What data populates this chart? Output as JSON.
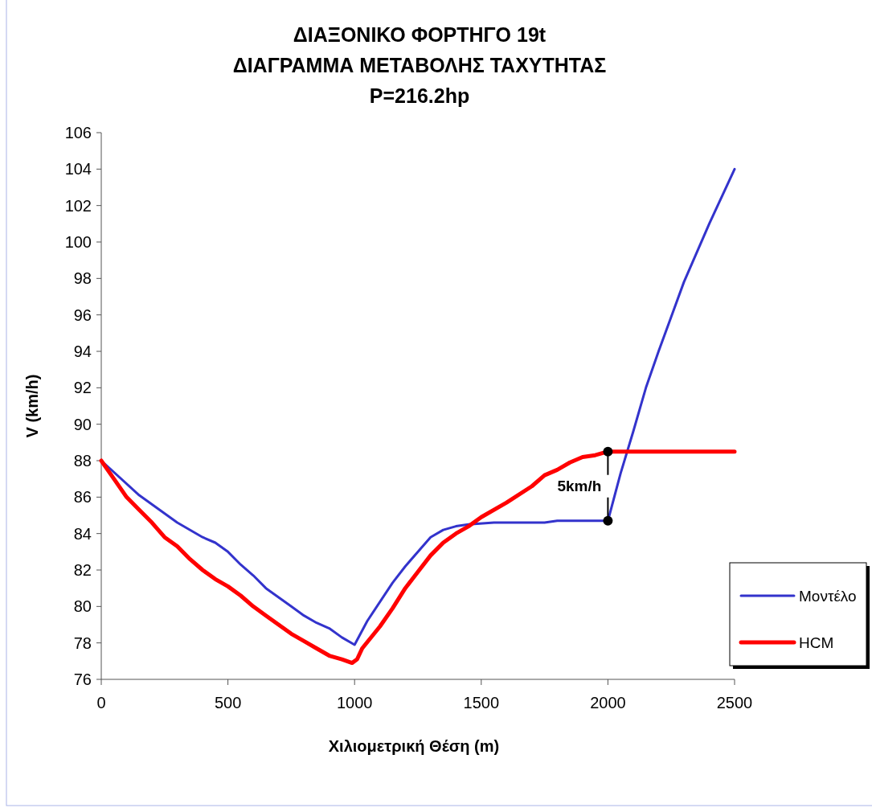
{
  "chart_data": {
    "type": "line",
    "title": "ΔΙΑΞΟΝΙΚΟ ΦΟΡΤΗΓΟ 19t\nΔΙΑΓΡΑΜΜΑ ΜΕΤΑΒΟΛΗΣ ΤΑΧΥΤΗΤΑΣ\nP=216.2hp",
    "xlabel": "Χιλιομετρική Θέση (m)",
    "ylabel": "V (km/h)",
    "xlim": [
      0,
      2500
    ],
    "xticks": [
      0,
      500,
      1000,
      1500,
      2000,
      2500
    ],
    "ylim": [
      76,
      106
    ],
    "yticks": [
      76,
      78,
      80,
      82,
      84,
      86,
      88,
      90,
      92,
      94,
      96,
      98,
      100,
      102,
      104,
      106
    ],
    "grid": false,
    "legend": "right",
    "marker": "none",
    "line_style": "solid",
    "series": [
      {
        "name": "Μοντέλο",
        "color": "#3333cc",
        "x": [
          0,
          150,
          300,
          400,
          450,
          500,
          550,
          600,
          650,
          750,
          800,
          850,
          900,
          950,
          1000,
          1050,
          1150,
          1200,
          1300,
          1350,
          1400,
          1450,
          1550,
          1750,
          1800,
          2000,
          2050,
          2100,
          2150,
          2200,
          2250,
          2300,
          2350,
          2400,
          2450,
          2500
        ],
        "values": [
          88,
          86.1,
          84.6,
          83.8,
          83.5,
          83.0,
          82.3,
          81.7,
          81.0,
          80.0,
          79.5,
          79.1,
          78.8,
          78.3,
          77.9,
          79.2,
          81.3,
          82.2,
          83.8,
          84.2,
          84.4,
          84.5,
          84.6,
          84.6,
          84.7,
          84.7,
          87.3,
          89.6,
          92.0,
          94.0,
          95.9,
          97.8,
          99.4,
          101.0,
          102.5,
          104.0
        ]
      },
      {
        "name": "HCM",
        "color": "#ff0000",
        "x": [
          0,
          50,
          100,
          150,
          200,
          250,
          300,
          350,
          400,
          450,
          500,
          550,
          600,
          650,
          700,
          750,
          800,
          850,
          900,
          950,
          990,
          1010,
          1030,
          1100,
          1150,
          1200,
          1250,
          1300,
          1350,
          1400,
          1450,
          1500,
          1600,
          1700,
          1750,
          1800,
          1850,
          1900,
          1950,
          2000,
          2500
        ],
        "values": [
          88,
          87,
          86,
          85.3,
          84.6,
          83.8,
          83.3,
          82.6,
          82.0,
          81.5,
          81.1,
          80.6,
          80.0,
          79.5,
          79.0,
          78.5,
          78.1,
          77.7,
          77.3,
          77.1,
          76.9,
          77.1,
          77.7,
          78.9,
          79.9,
          81.0,
          81.9,
          82.8,
          83.5,
          84.0,
          84.4,
          84.9,
          85.7,
          86.6,
          87.2,
          87.5,
          87.9,
          88.2,
          88.3,
          88.5,
          88.5
        ]
      }
    ],
    "annotations": [
      {
        "text": "5km/h",
        "x": 2000,
        "y": 88.5
      }
    ]
  }
}
